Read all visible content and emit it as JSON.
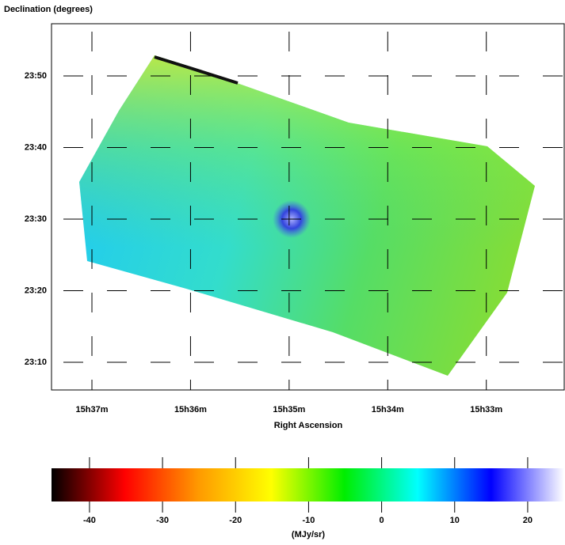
{
  "chart_data": [
    {
      "type": "sky-image",
      "y_label": "Declination (degrees)",
      "x_label": "Right Ascension",
      "xlim": [
        937.41,
        932.21
      ],
      "xticks": [
        {
          "value": 937,
          "label": "15h37m"
        },
        {
          "value": 936,
          "label": "15h36m"
        },
        {
          "value": 935,
          "label": "15h35m"
        },
        {
          "value": 934,
          "label": "15h34m"
        },
        {
          "value": 933,
          "label": "15h33m"
        }
      ],
      "ylim": [
        23.1022,
        23.9549
      ],
      "yticks": [
        {
          "value": 23.8333,
          "label": "23:50"
        },
        {
          "value": 23.6667,
          "label": "23:40"
        },
        {
          "value": 23.5,
          "label": "23:30"
        },
        {
          "value": 23.3333,
          "label": "23:20"
        },
        {
          "value": 23.1667,
          "label": "23:10"
        }
      ],
      "grid": true
    },
    {
      "type": "colorbar",
      "label": "(MJy/sr)",
      "xlim": [
        -45.2,
        25
      ],
      "xticks": [
        -40,
        -30,
        -20,
        -10,
        0,
        10,
        20
      ],
      "colors": [
        "#000000",
        "#ff0000",
        "#ff9900",
        "#ffff00",
        "#00ee00",
        "#00ffff",
        "#0000ff",
        "#ffffff"
      ]
    }
  ]
}
